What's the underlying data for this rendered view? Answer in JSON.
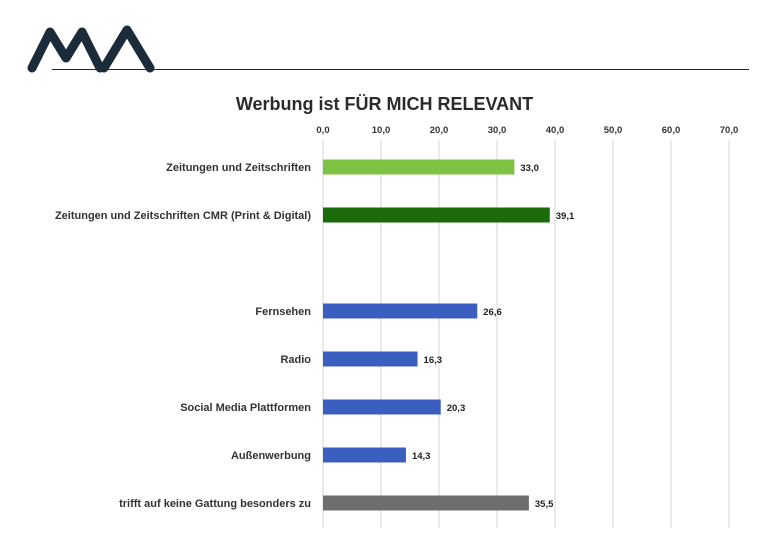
{
  "logo": {
    "icon": "ma-logo-icon",
    "color": "#1c2b3a"
  },
  "chart_data": {
    "type": "bar",
    "orientation": "horizontal",
    "title": "Werbung ist FÜR MICH RELEVANT",
    "xlim": [
      0,
      70
    ],
    "xticks": [
      0,
      10,
      20,
      30,
      40,
      50,
      60,
      70
    ],
    "xtick_labels": [
      "0,0",
      "10,0",
      "20,0",
      "30,0",
      "40,0",
      "50,0",
      "60,0",
      "70,0"
    ],
    "grid": true,
    "axis_position": "top",
    "categories": [
      {
        "label": "Zeitungen und Zeitschriften",
        "value": 33.0,
        "value_label": "33,0",
        "color": "#7dc242"
      },
      {
        "label": "Zeitungen und Zeitschriften CMR (Print & Digital)",
        "value": 39.1,
        "value_label": "39,1",
        "color": "#1b6b0a"
      },
      {
        "label": "",
        "value": null,
        "value_label": "",
        "color": ""
      },
      {
        "label": "Fernsehen",
        "value": 26.6,
        "value_label": "26,6",
        "color": "#3a5fc0"
      },
      {
        "label": "Radio",
        "value": 16.3,
        "value_label": "16,3",
        "color": "#3a5fc0"
      },
      {
        "label": "Social Media Plattformen",
        "value": 20.3,
        "value_label": "20,3",
        "color": "#3a5fc0"
      },
      {
        "label": "Außenwerbung",
        "value": 14.3,
        "value_label": "14,3",
        "color": "#3a5fc0"
      },
      {
        "label": "trifft auf keine Gattung besonders zu",
        "value": 35.5,
        "value_label": "35,5",
        "color": "#6e6e6e"
      }
    ]
  }
}
